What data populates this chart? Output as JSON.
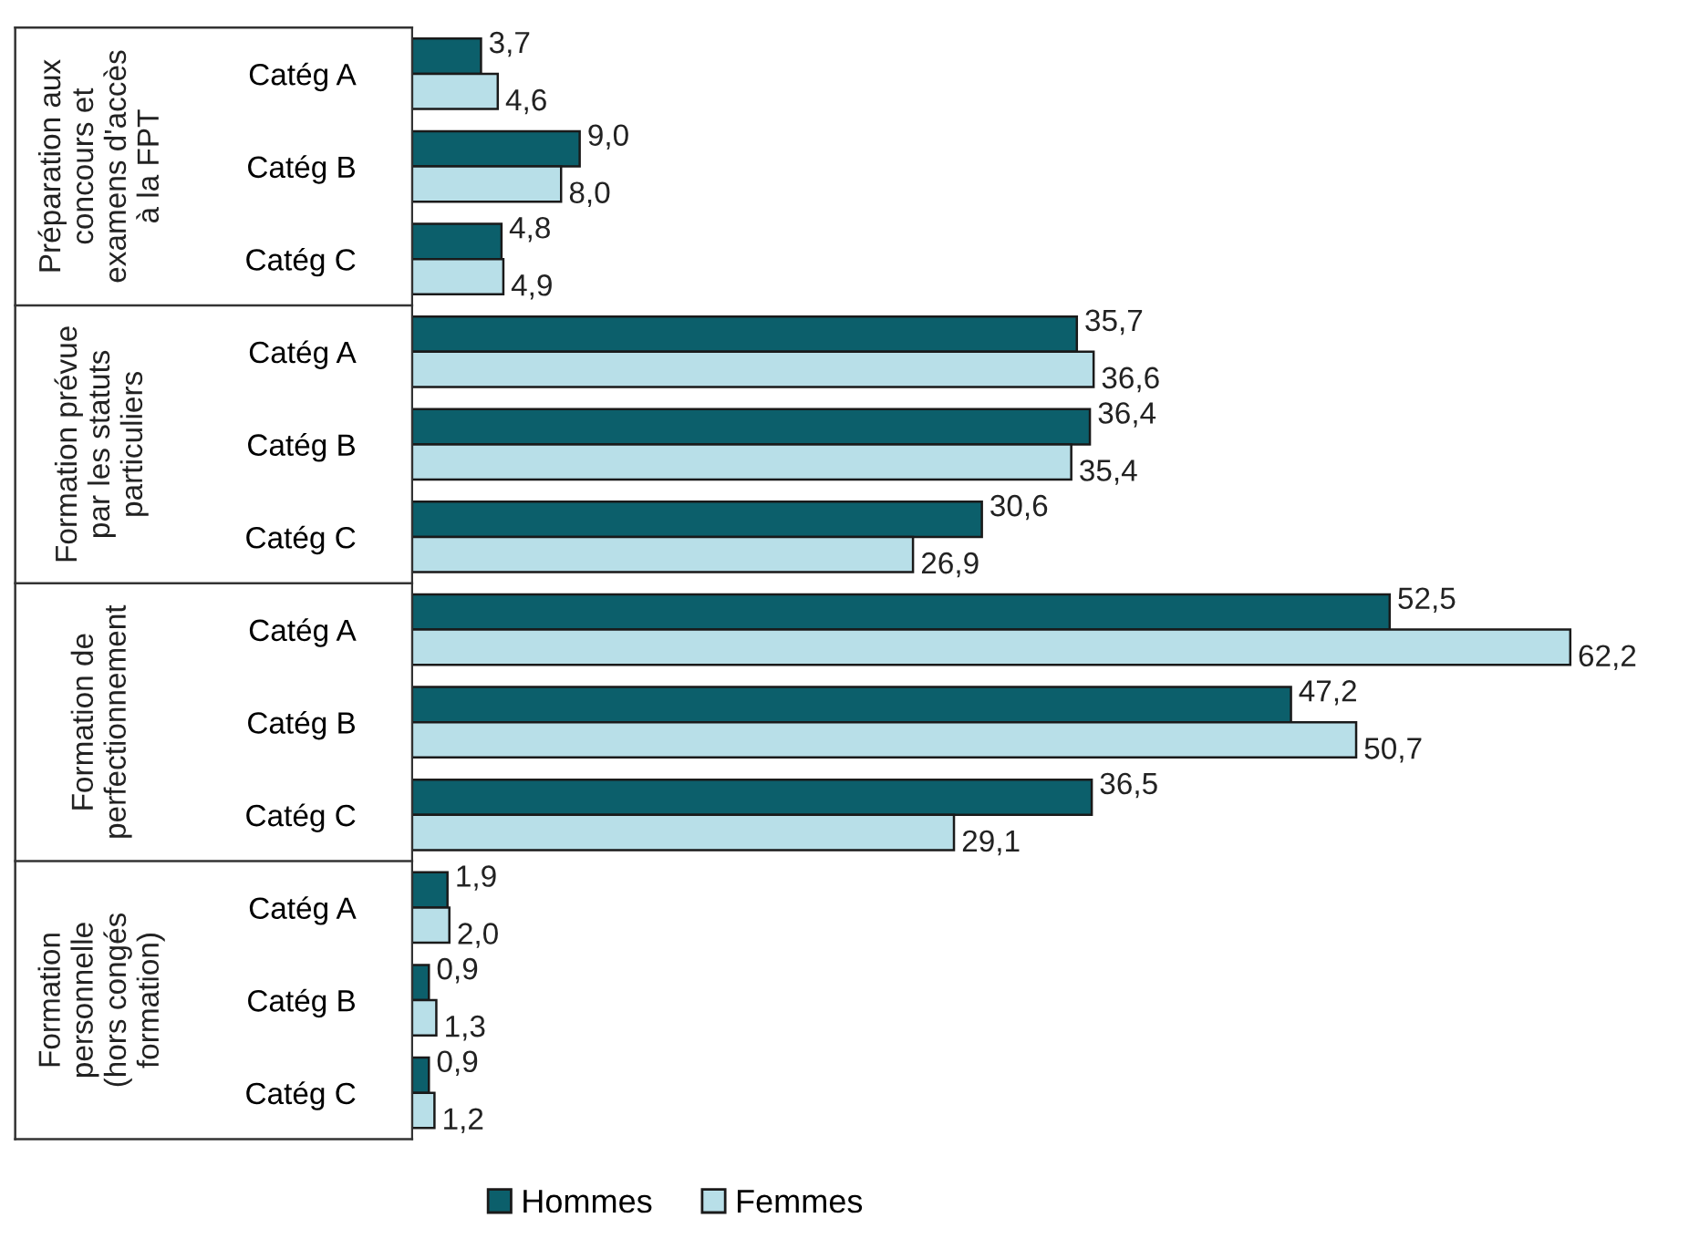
{
  "chart_data": {
    "type": "bar",
    "orientation": "horizontal",
    "categories": [
      "Catég A",
      "Catég B",
      "Catég C",
      "Catég A",
      "Catég B",
      "Catég C",
      "Catég A",
      "Catég B",
      "Catég C",
      "Catég A",
      "Catég B",
      "Catég C"
    ],
    "series": [
      {
        "name": "Hommes",
        "color": "#0c5f6b",
        "values": [
          3.7,
          9.0,
          4.8,
          35.7,
          36.4,
          30.6,
          52.5,
          47.2,
          36.5,
          1.9,
          0.9,
          0.9
        ],
        "value_labels": [
          "3,7",
          "9,0",
          "4,8",
          "35,7",
          "36,4",
          "30,6",
          "52,5",
          "47,2",
          "36,5",
          "1,9",
          "0,9",
          "0,9"
        ]
      },
      {
        "name": "Femmes",
        "color": "#b8dfe8",
        "values": [
          4.6,
          8.0,
          4.9,
          36.6,
          35.4,
          26.9,
          62.2,
          50.7,
          29.1,
          2.0,
          1.3,
          1.2
        ],
        "value_labels": [
          "4,6",
          "8,0",
          "4,9",
          "36,6",
          "35,4",
          "26,9",
          "62,2",
          "50,7",
          "29,1",
          "2,0",
          "1,3",
          "1,2"
        ]
      }
    ],
    "annotations": [
      "Préparation aux\nconcours et\nexamens d'accès\nà la FPT",
      "Formation prévue\npar les statuts\nparticuliers",
      "Formation de\nperfectionnement",
      "Formation\npersonnelle\n(hors congés\nformation)"
    ],
    "legend": "bottom",
    "grid": false
  }
}
